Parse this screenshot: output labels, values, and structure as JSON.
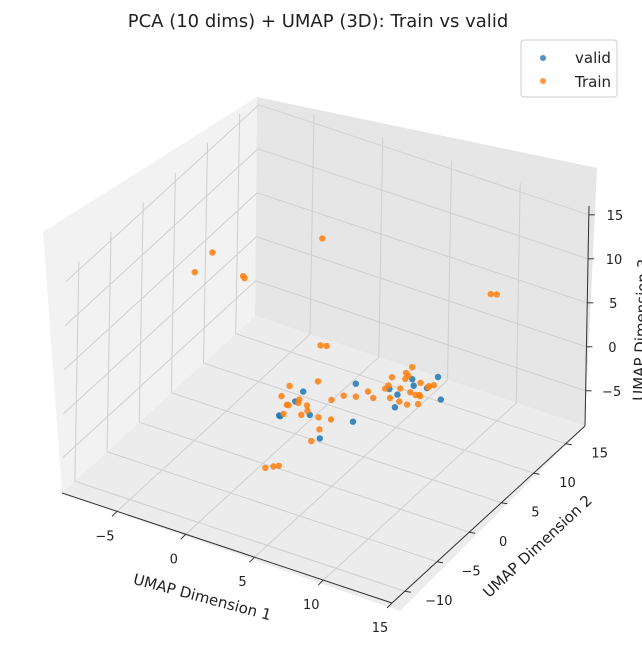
{
  "chart_data": {
    "type": "scatter",
    "projection": "3d",
    "title": "PCA (10 dims) + UMAP (3D): Train vs valid",
    "xlabel": "UMAP Dimension 1",
    "ylabel": "UMAP Dimension 2",
    "zlabel": "UMAP Dimension 3",
    "xlim": [
      -9,
      15
    ],
    "ylim": [
      -12,
      18
    ],
    "zlim": [
      -9,
      16
    ],
    "x_ticks": [
      "−5",
      "0",
      "5",
      "10",
      "15"
    ],
    "x_tick_values": [
      -5,
      0,
      5,
      10,
      15
    ],
    "y_ticks": [
      "−10",
      "−5",
      "0",
      "5",
      "10",
      "15"
    ],
    "y_tick_values": [
      -10,
      -5,
      0,
      5,
      10,
      15
    ],
    "z_ticks": [
      "−5",
      "0",
      "5",
      "10",
      "15"
    ],
    "z_tick_values": [
      -5,
      0,
      5,
      10,
      15
    ],
    "grid": true,
    "legend_position": "top-right",
    "series": [
      {
        "name": "valid",
        "color": "#1f77b4",
        "points": [
          [
            7.8,
            4.0,
            0.2
          ],
          [
            8.6,
            4.8,
            1.1
          ],
          [
            9.2,
            5.6,
            0.6
          ],
          [
            8.0,
            3.2,
            -0.6
          ],
          [
            9.8,
            6.0,
            1.9
          ],
          [
            7.4,
            3.6,
            0.9
          ],
          [
            2.8,
            -1.2,
            0.3
          ],
          [
            2.2,
            -2.4,
            -0.8
          ],
          [
            3.6,
            -0.6,
            -1.2
          ],
          [
            2.6,
            -3.1,
            -0.2
          ],
          [
            5.6,
            2.2,
            1.5
          ],
          [
            6.0,
            1.0,
            -1.8
          ],
          [
            4.9,
            -1.8,
            -2.4
          ],
          [
            3.0,
            -0.4,
            1.0
          ],
          [
            8.9,
            3.9,
            2.6
          ],
          [
            10.3,
            5.4,
            0.0
          ]
        ]
      },
      {
        "name": "Train",
        "color": "#ff7f0e",
        "points": [
          [
            8.0,
            4.0,
            1.0
          ],
          [
            8.5,
            4.5,
            0.5
          ],
          [
            9.0,
            5.0,
            1.5
          ],
          [
            7.5,
            3.5,
            0.0
          ],
          [
            8.2,
            4.8,
            2.0
          ],
          [
            9.3,
            4.2,
            0.8
          ],
          [
            7.8,
            5.2,
            1.2
          ],
          [
            8.7,
            3.6,
            -0.2
          ],
          [
            9.6,
            5.8,
            1.0
          ],
          [
            7.2,
            4.4,
            1.6
          ],
          [
            8.4,
            3.0,
            0.4
          ],
          [
            9.0,
            6.2,
            0.2
          ],
          [
            8.1,
            5.6,
            2.4
          ],
          [
            7.6,
            3.0,
            1.8
          ],
          [
            9.8,
            4.6,
            1.8
          ],
          [
            8.8,
            5.4,
            -0.4
          ],
          [
            7.0,
            3.8,
            0.6
          ],
          [
            9.4,
            3.4,
            1.4
          ],
          [
            8.3,
            4.2,
            2.8
          ],
          [
            8.9,
            4.9,
            -0.9
          ],
          [
            3.0,
            -1.0,
            0.5
          ],
          [
            2.5,
            -1.6,
            0.0
          ],
          [
            3.4,
            -2.0,
            1.0
          ],
          [
            2.1,
            -0.6,
            1.3
          ],
          [
            3.7,
            -1.2,
            -0.3
          ],
          [
            2.8,
            -2.5,
            0.8
          ],
          [
            3.2,
            -0.2,
            -0.6
          ],
          [
            2.3,
            -1.9,
            -0.9
          ],
          [
            3.9,
            -2.6,
            0.3
          ],
          [
            1.8,
            -1.2,
            0.4
          ],
          [
            4.6,
            0.6,
            0.2
          ],
          [
            5.2,
            1.2,
            0.6
          ],
          [
            5.8,
            1.8,
            0.4
          ],
          [
            6.4,
            2.4,
            0.9
          ],
          [
            4.0,
            -0.1,
            -1.6
          ],
          [
            4.4,
            -0.8,
            -2.3
          ],
          [
            4.2,
            -1.6,
            -3.2
          ],
          [
            5.0,
            -0.3,
            -1.2
          ],
          [
            6.6,
            2.8,
            0.0
          ],
          [
            3.6,
            0.6,
            1.8
          ],
          [
            -5.3,
            3.0,
            10.2
          ],
          [
            -6.0,
            1.8,
            8.4
          ],
          [
            -3.4,
            4.0,
            7.6
          ],
          [
            -3.6,
            4.2,
            7.6
          ],
          [
            0.2,
            8.3,
            11.1
          ],
          [
            9.8,
            14.1,
            5.9
          ],
          [
            10.1,
            14.4,
            5.8
          ],
          [
            3.0,
            2.2,
            4.5
          ],
          [
            3.3,
            2.5,
            4.4
          ],
          [
            3.1,
            -6.4,
            -3.6
          ],
          [
            3.5,
            -6.0,
            -3.5
          ],
          [
            3.8,
            -5.8,
            -3.4
          ]
        ]
      }
    ]
  }
}
